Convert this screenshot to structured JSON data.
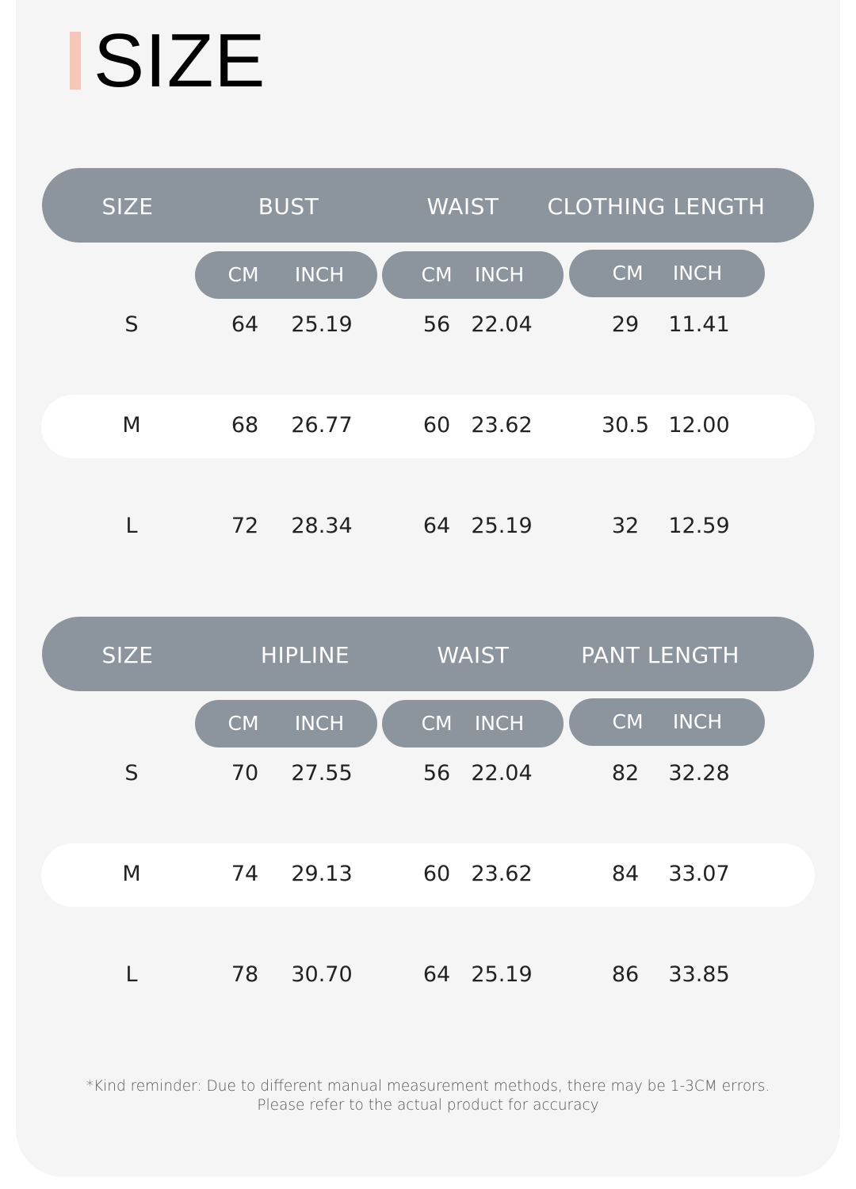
{
  "title": "SIZE",
  "colors": {
    "accent": "#f8c6b8",
    "header": "#8c949e",
    "background": "#f5f5f5",
    "highlight_row": "#ffffff"
  },
  "tables": [
    {
      "headers": [
        "SIZE",
        "BUST",
        "WAIST",
        "CLOTHING LENGTH"
      ],
      "units": [
        [
          "CM",
          "INCH"
        ],
        [
          "CM",
          "INCH"
        ],
        [
          "CM",
          "INCH"
        ]
      ],
      "rows": [
        [
          "S",
          "64",
          "25.19",
          "56",
          "22.04",
          "29",
          "11.41"
        ],
        [
          "M",
          "68",
          "26.77",
          "60",
          "23.62",
          "30.5",
          "12.00"
        ],
        [
          "L",
          "72",
          "28.34",
          "64",
          "25.19",
          "32",
          "12.59"
        ]
      ]
    },
    {
      "headers": [
        "SIZE",
        "HIPLINE",
        "WAIST",
        "PANT LENGTH"
      ],
      "units": [
        [
          "CM",
          "INCH"
        ],
        [
          "CM",
          "INCH"
        ],
        [
          "CM",
          "INCH"
        ]
      ],
      "rows": [
        [
          "S",
          "70",
          "27.55",
          "56",
          "22.04",
          "82",
          "32.28"
        ],
        [
          "M",
          "74",
          "29.13",
          "60",
          "23.62",
          "84",
          "33.07"
        ],
        [
          "L",
          "78",
          "30.70",
          "64",
          "25.19",
          "86",
          "33.85"
        ]
      ]
    }
  ],
  "note": {
    "line1": "*Kind reminder: Due to different manual measurement methods, there may be 1-3CM errors.",
    "line2": "Please refer to the actual product for accuracy"
  }
}
